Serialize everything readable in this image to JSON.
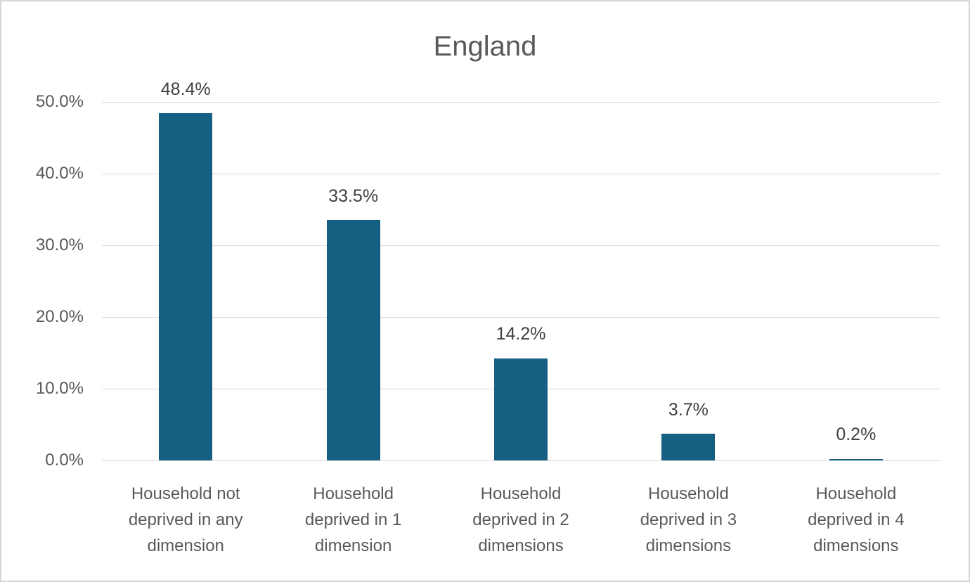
{
  "chart_data": {
    "type": "bar",
    "title": "England",
    "categories": [
      "Household not deprived in any dimension",
      "Household deprived in 1 dimension",
      "Household deprived in 2 dimensions",
      "Household deprived in 3 dimensions",
      "Household deprived in 4 dimensions"
    ],
    "category_lines": [
      [
        "Household not",
        "deprived in any",
        "dimension"
      ],
      [
        "Household",
        "deprived in 1",
        "dimension"
      ],
      [
        "Household",
        "deprived in 2",
        "dimensions"
      ],
      [
        "Household",
        "deprived in 3",
        "dimensions"
      ],
      [
        "Household",
        "deprived in 4",
        "dimensions"
      ]
    ],
    "values": [
      48.4,
      33.5,
      14.2,
      3.7,
      0.2
    ],
    "data_labels": [
      "48.4%",
      "33.5%",
      "14.2%",
      "3.7%",
      "0.2%"
    ],
    "yticks": [
      {
        "value": 0,
        "label": "0.0%"
      },
      {
        "value": 10,
        "label": "10.0%"
      },
      {
        "value": 20,
        "label": "20.0%"
      },
      {
        "value": 30,
        "label": "30.0%"
      },
      {
        "value": 40,
        "label": "40.0%"
      },
      {
        "value": 50,
        "label": "50.0%"
      }
    ],
    "ylim": [
      0,
      50
    ],
    "grid": "horizontal",
    "legend": "none",
    "colors": {
      "bar": "#156082",
      "gridline": "#d9d9d9",
      "axis_line": "#d9d9d9",
      "title_text": "#595959",
      "tick_text": "#595959",
      "category_text": "#595959",
      "data_label_text": "#404040",
      "background": "#ffffff",
      "border": "#d6d6d6"
    }
  }
}
